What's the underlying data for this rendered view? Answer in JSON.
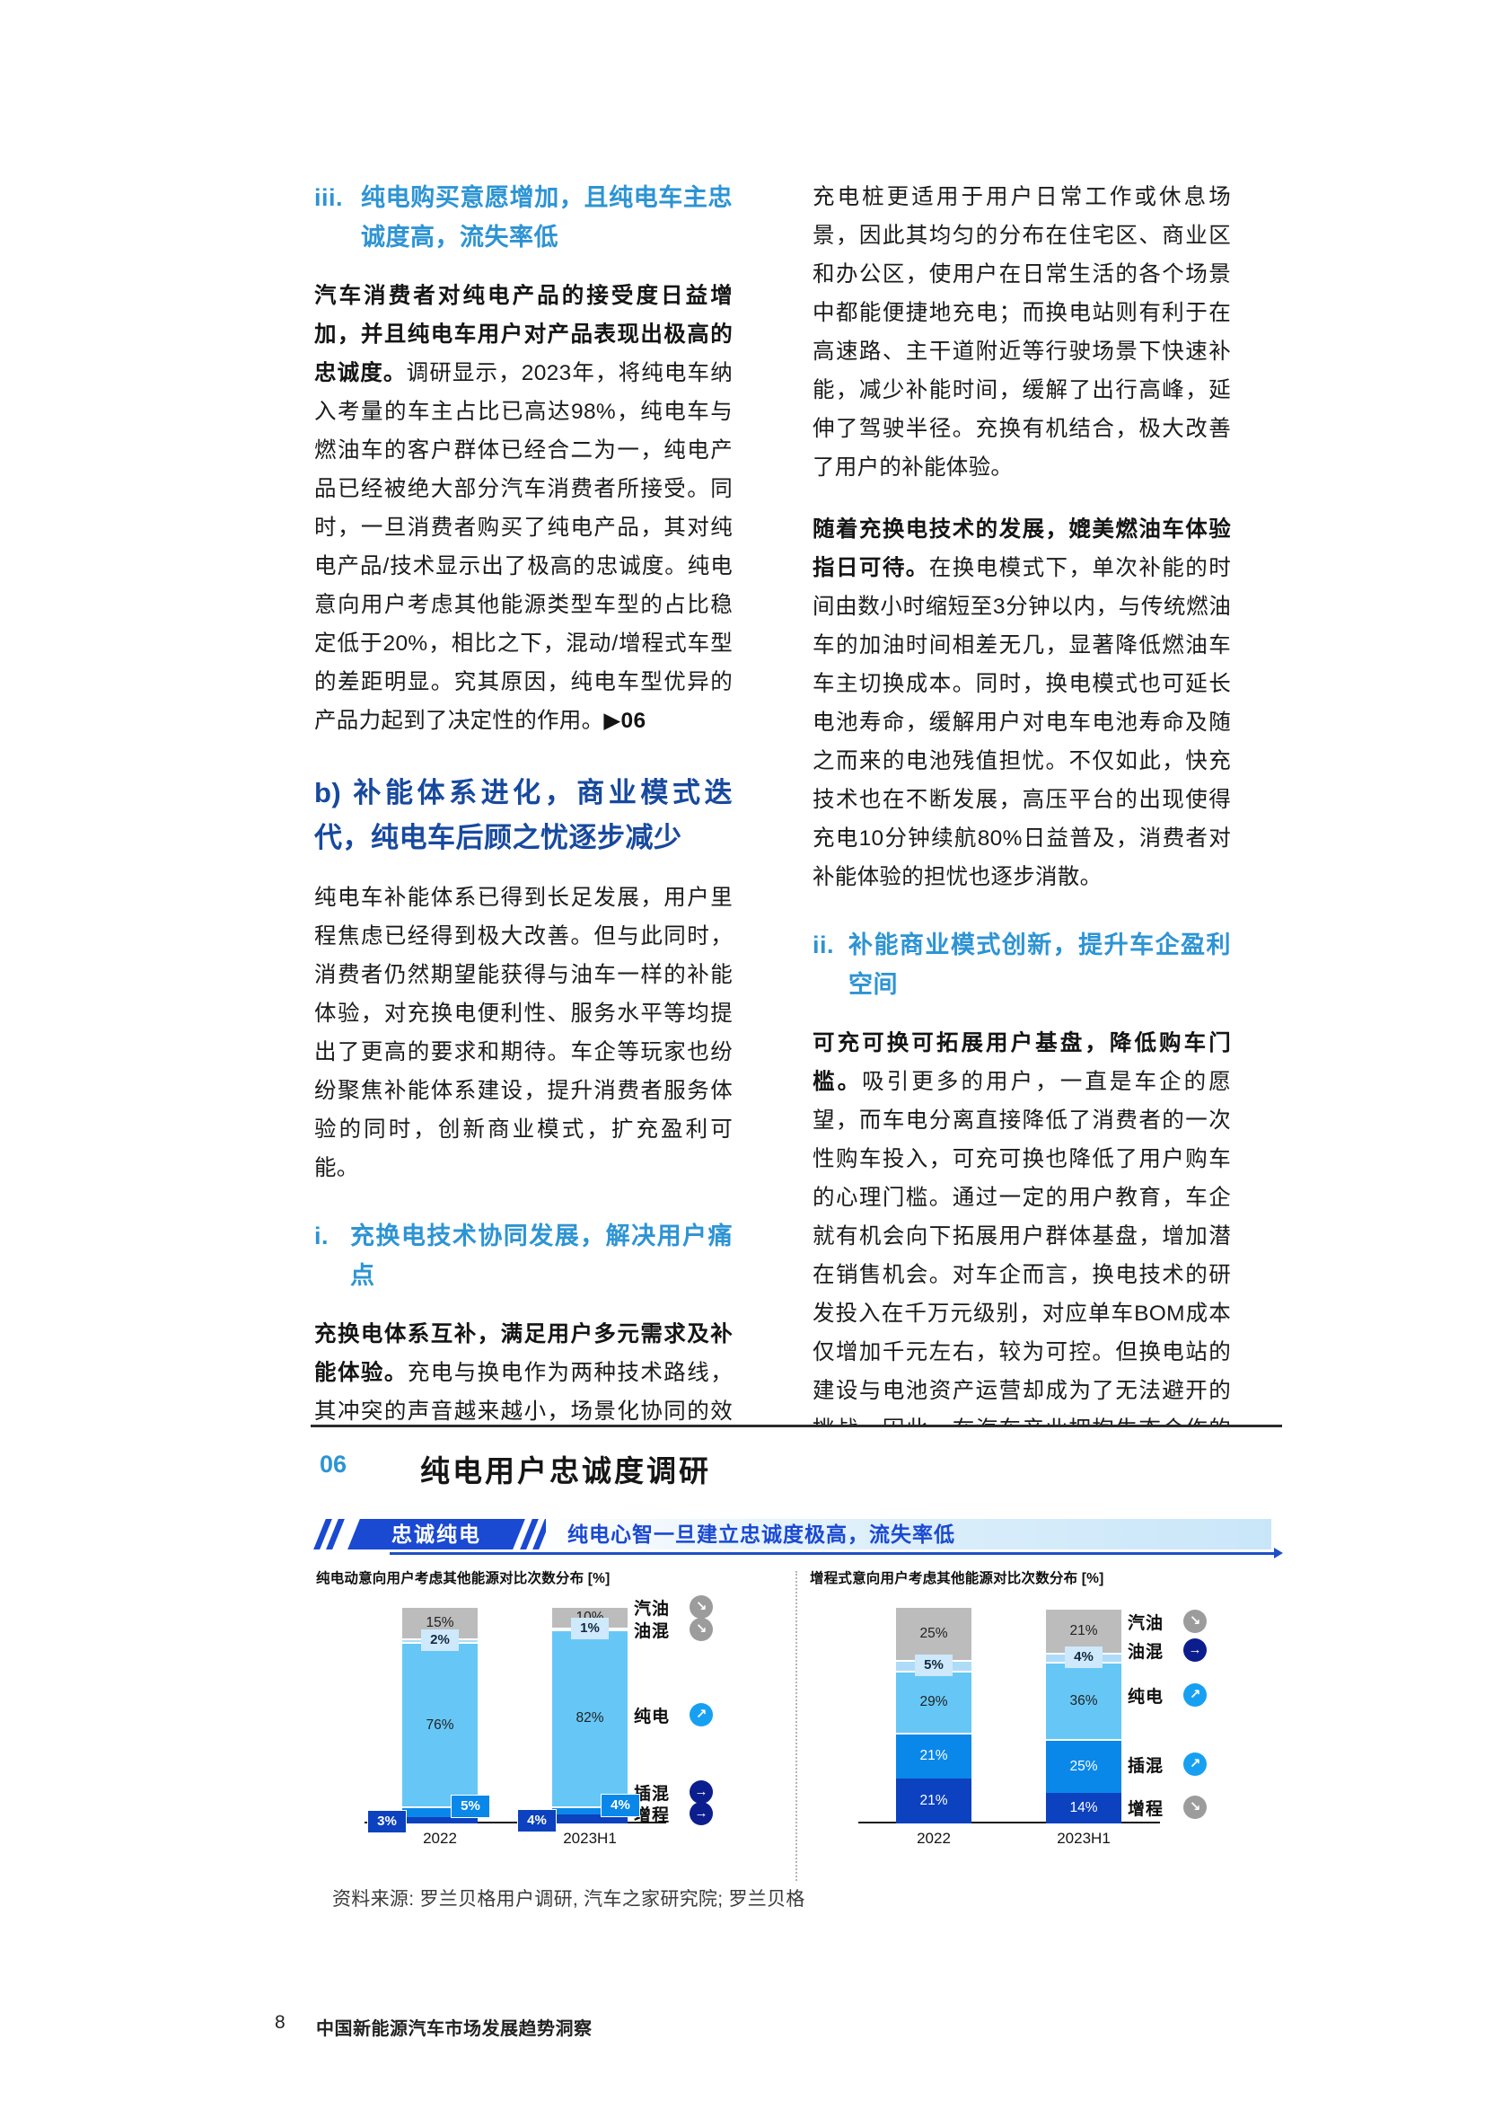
{
  "theme": {
    "azure": "#2d94d4",
    "heading_navy": "#17499e",
    "badge_blue": "#1a49d2",
    "bar_gray": "#bcbcbc",
    "bar_light_blue": "#66c7f6",
    "bar_mid_blue": "#0a88ea",
    "bar_navy": "#0c41bf",
    "bar_pale_blue": "#aedcf8",
    "legend_gray": "#9c9c9c",
    "legend_blue": "#17a0f2",
    "legend_navy": "#0c1e8e"
  },
  "left_column": {
    "heading_iii_num": "iii.",
    "heading_iii_text": "纯电购买意愿增加，且纯电车主忠诚度高，流失率低",
    "para1_lead": "汽车消费者对纯电产品的接受度日益增加，并且纯电车用户对产品表现出极高的忠诚度。",
    "para1_body": "调研显示，2023年，将纯电车纳入考量的车主占比已高达98%，纯电车与燃油车的客户群体已经合二为一，纯电产品已经被绝大部分汽车消费者所接受。同时，一旦消费者购买了纯电产品，其对纯电产品/技术显示出了极高的忠诚度。纯电意向用户考虑其他能源类型车型的占比稳定低于20%，相比之下，混动/增程式车型的差距明显。究其原因，纯电车型优异的产品力起到了决定性的作用。",
    "figure_ref": "▶06",
    "heading_b": "b) 补能体系进化，商业模式迭代，纯电车后顾之忧逐步减少",
    "para2": "纯电车补能体系已得到长足发展，用户里程焦虑已经得到极大改善。但与此同时，消费者仍然期望能获得与油车一样的补能体验，对充换电便利性、服务水平等均提出了更高的要求和期待。车企等玩家也纷纷聚焦补能体系建设，提升消费者服务体验的同时，创新商业模式，扩充盈利可能。",
    "heading_i_num": "i.",
    "heading_i_text": "充换电技术协同发展，解决用户痛点",
    "para3_lead": "充换电体系互补，满足用户多元需求及补能体验。",
    "para3_body": "充电与换电作为两种技术路线，其冲突的声音越来越小，场景化协同的效果越来越明显。"
  },
  "right_column": {
    "para1": "充电桩更适用于用户日常工作或休息场景，因此其均匀的分布在住宅区、商业区和办公区，使用户在日常生活的各个场景中都能便捷地充电；而换电站则有利于在高速路、主干道附近等行驶场景下快速补能，减少补能时间，缓解了出行高峰，延伸了驾驶半径。充换有机结合，极大改善了用户的补能体验。",
    "para2_lead": "随着充换电技术的发展，媲美燃油车体验指日可待。",
    "para2_body": "在换电模式下，单次补能的时间由数小时缩短至3分钟以内，与传统燃油车的加油时间相差无几，显著降低燃油车车主切换成本。同时，换电模式也可延长电池寿命，缓解用户对电车电池寿命及随之而来的电池残值担忧。不仅如此，快充技术也在不断发展，高压平台的出现使得充电10分钟续航80%日益普及，消费者对补能体验的担忧也逐步消散。",
    "heading_ii_num": "ii.",
    "heading_ii_text": "补能商业模式创新，提升车企盈利空间",
    "para3_lead": "可充可换可拓展用户基盘，降低购车门槛。",
    "para3_body": "吸引更多的用户，一直是车企的愿望，而车电分离直接降低了消费者的一次性购车投入，可充可换也降低了用户购车的心理门槛。通过一定的用户教育，车企就有机会向下拓展用户群体基盘，增加潜在销售机会。对车企而言，换电技术的研发投入在千万元级别，对应单车BOM成本仅增加千元左右，较为可控。但换电站的建设与电池资产运营却成为了无法避开的挑战。因此，在汽车产业拥抱生态合作的今天，换电联盟的成立"
  },
  "figure": {
    "number": "06",
    "title": "纯电用户忠诚度调研",
    "banner": {
      "badge": "忠诚纯电",
      "text": "纯电心智一旦建立忠诚度极高，流失率低"
    },
    "source": "资料来源: 罗兰贝格用户调研, 汽车之家研究院; 罗兰贝格"
  },
  "footer": {
    "page": "8",
    "title": "中国新能源汽车市场发展趋势洞察"
  },
  "chart_data": [
    {
      "type": "bar",
      "subtype": "stacked",
      "title": "纯电动意向用户考虑其他能源对比次数分布 [%]",
      "categories": [
        "2022",
        "2023H1"
      ],
      "ylim": [
        0,
        100
      ],
      "series": [
        {
          "name": "增程",
          "color": "navy",
          "values": [
            3,
            4
          ],
          "label_style": "tag-navy",
          "tag_pos": "left"
        },
        {
          "name": "插混",
          "color": "mid",
          "values": [
            5,
            4
          ],
          "label_style": "tag-mid",
          "tag_pos": "right"
        },
        {
          "name": "纯电",
          "color": "light",
          "values": [
            76,
            82
          ],
          "label_style": "center-dark"
        },
        {
          "name": "油混",
          "color": "pale",
          "values": [
            2,
            1
          ],
          "label_style": "tag-pale",
          "tag_pos": "center"
        },
        {
          "name": "汽油",
          "color": "gray",
          "values": [
            15,
            10
          ],
          "label_style": "center-dark"
        }
      ],
      "legend": [
        {
          "label": "汽油",
          "color": "gray",
          "trend": "down",
          "y": 239
        },
        {
          "label": "油混",
          "color": "gray",
          "trend": "down",
          "y": 214,
          "pointer": "\\"
        },
        {
          "label": "纯电",
          "color": "blue",
          "trend": "up",
          "y": 119
        },
        {
          "label": "插混",
          "color": "navy",
          "trend": "flat",
          "y": 33,
          "pointer": "/"
        },
        {
          "label": "增程",
          "color": "navy",
          "trend": "flat",
          "y": 9,
          "pointer": "/"
        }
      ]
    },
    {
      "type": "bar",
      "subtype": "stacked",
      "title": "增程式意向用户考虑其他能源对比次数分布 [%]",
      "categories": [
        "2022",
        "2023H1"
      ],
      "ylim": [
        0,
        100
      ],
      "series": [
        {
          "name": "增程",
          "color": "navy",
          "values": [
            21,
            14
          ],
          "label_style": "center-white"
        },
        {
          "name": "插混",
          "color": "mid",
          "values": [
            21,
            25
          ],
          "label_style": "center-white"
        },
        {
          "name": "纯电",
          "color": "light",
          "values": [
            29,
            36
          ],
          "label_style": "center-dark"
        },
        {
          "name": "油混",
          "color": "pale",
          "values": [
            5,
            4
          ],
          "label_style": "tag-pale",
          "tag_pos": "center"
        },
        {
          "name": "汽油",
          "color": "gray",
          "values": [
            25,
            21
          ],
          "label_style": "center-dark"
        }
      ],
      "legend": [
        {
          "label": "汽油",
          "color": "gray",
          "trend": "down",
          "y": 223
        },
        {
          "label": "油混",
          "color": "navy",
          "trend": "flat",
          "y": 191
        },
        {
          "label": "纯电",
          "color": "blue",
          "trend": "up",
          "y": 141
        },
        {
          "label": "插混",
          "color": "blue",
          "trend": "up",
          "y": 64
        },
        {
          "label": "增程",
          "color": "gray",
          "trend": "down",
          "y": 16
        }
      ]
    }
  ]
}
